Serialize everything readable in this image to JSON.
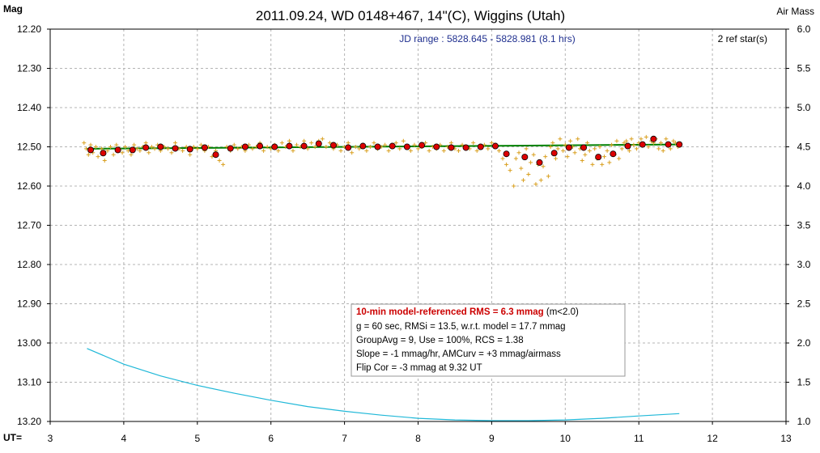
{
  "chart_data": {
    "type": "scatter",
    "title": "2011.09.24, WD 0148+467, 14\"(C), Wiggins (Utah)",
    "ylabel_left": "Mag",
    "ylabel_right": "Air Mass",
    "xlabel": "UT=",
    "jd_range": "JD range : 5828.645 - 5828.981 (8.1 hrs)",
    "ref_stars": "2 ref star(s)",
    "xlim": [
      3,
      13
    ],
    "x_ticks": [
      "3",
      "4",
      "5",
      "6",
      "7",
      "8",
      "9",
      "10",
      "11",
      "12",
      "13"
    ],
    "ylim_left": [
      12.2,
      13.2
    ],
    "y_ticks_left": [
      "12.20",
      "12.30",
      "12.40",
      "12.50",
      "12.60",
      "12.70",
      "12.80",
      "12.90",
      "13.00",
      "13.10",
      "13.20"
    ],
    "ylim_right": [
      6.0,
      1.0
    ],
    "y_ticks_right": [
      "6.0",
      "5.5",
      "5.0",
      "4.5",
      "4.0",
      "3.5",
      "3.0",
      "2.5",
      "2.0",
      "1.5",
      "1.0"
    ],
    "grid": true,
    "colors": {
      "individual": "#d9a020",
      "group": "#dd0000",
      "model": "#008000",
      "airmass": "#20b8d8"
    },
    "group_points": [
      [
        3.55,
        12.508
      ],
      [
        3.72,
        12.516
      ],
      [
        3.92,
        12.508
      ],
      [
        4.12,
        12.508
      ],
      [
        4.3,
        12.502
      ],
      [
        4.5,
        12.5
      ],
      [
        4.7,
        12.504
      ],
      [
        4.9,
        12.506
      ],
      [
        5.1,
        12.502
      ],
      [
        5.25,
        12.52
      ],
      [
        5.45,
        12.504
      ],
      [
        5.65,
        12.5
      ],
      [
        5.85,
        12.498
      ],
      [
        6.05,
        12.5
      ],
      [
        6.25,
        12.498
      ],
      [
        6.45,
        12.498
      ],
      [
        6.65,
        12.492
      ],
      [
        6.85,
        12.496
      ],
      [
        7.05,
        12.502
      ],
      [
        7.25,
        12.498
      ],
      [
        7.45,
        12.5
      ],
      [
        7.65,
        12.498
      ],
      [
        7.85,
        12.5
      ],
      [
        8.05,
        12.496
      ],
      [
        8.25,
        12.5
      ],
      [
        8.45,
        12.502
      ],
      [
        8.65,
        12.502
      ],
      [
        8.85,
        12.5
      ],
      [
        9.05,
        12.498
      ],
      [
        9.2,
        12.518
      ],
      [
        9.45,
        12.526
      ],
      [
        9.65,
        12.54
      ],
      [
        9.85,
        12.516
      ],
      [
        10.05,
        12.502
      ],
      [
        10.25,
        12.502
      ],
      [
        10.45,
        12.526
      ],
      [
        10.65,
        12.518
      ],
      [
        10.85,
        12.498
      ],
      [
        11.05,
        12.494
      ],
      [
        11.2,
        12.48
      ],
      [
        11.4,
        12.494
      ],
      [
        11.55,
        12.494
      ]
    ],
    "individual_points": [
      [
        3.46,
        12.49
      ],
      [
        3.49,
        12.505
      ],
      [
        3.52,
        12.52
      ],
      [
        3.55,
        12.495
      ],
      [
        3.58,
        12.515
      ],
      [
        3.62,
        12.5
      ],
      [
        3.65,
        12.525
      ],
      [
        3.7,
        12.505
      ],
      [
        3.74,
        12.535
      ],
      [
        3.78,
        12.51
      ],
      [
        3.82,
        12.5
      ],
      [
        3.86,
        12.52
      ],
      [
        3.9,
        12.495
      ],
      [
        3.94,
        12.505
      ],
      [
        3.98,
        12.515
      ],
      [
        4.02,
        12.5
      ],
      [
        4.06,
        12.51
      ],
      [
        4.1,
        12.52
      ],
      [
        4.14,
        12.495
      ],
      [
        4.18,
        12.505
      ],
      [
        4.22,
        12.51
      ],
      [
        4.26,
        12.5
      ],
      [
        4.3,
        12.49
      ],
      [
        4.34,
        12.515
      ],
      [
        4.38,
        12.5
      ],
      [
        4.42,
        12.505
      ],
      [
        4.46,
        12.495
      ],
      [
        4.5,
        12.51
      ],
      [
        4.55,
        12.5
      ],
      [
        4.6,
        12.505
      ],
      [
        4.65,
        12.515
      ],
      [
        4.7,
        12.49
      ],
      [
        4.75,
        12.505
      ],
      [
        4.8,
        12.51
      ],
      [
        4.85,
        12.5
      ],
      [
        4.9,
        12.52
      ],
      [
        4.95,
        12.5
      ],
      [
        5.0,
        12.505
      ],
      [
        5.05,
        12.495
      ],
      [
        5.1,
        12.51
      ],
      [
        5.15,
        12.5
      ],
      [
        5.2,
        12.525
      ],
      [
        5.25,
        12.51
      ],
      [
        5.3,
        12.535
      ],
      [
        5.35,
        12.545
      ],
      [
        5.4,
        12.5
      ],
      [
        5.45,
        12.51
      ],
      [
        5.5,
        12.495
      ],
      [
        5.55,
        12.505
      ],
      [
        5.6,
        12.5
      ],
      [
        5.65,
        12.51
      ],
      [
        5.7,
        12.495
      ],
      [
        5.75,
        12.505
      ],
      [
        5.8,
        12.5
      ],
      [
        5.85,
        12.49
      ],
      [
        5.9,
        12.51
      ],
      [
        5.95,
        12.5
      ],
      [
        6.0,
        12.505
      ],
      [
        6.05,
        12.495
      ],
      [
        6.1,
        12.51
      ],
      [
        6.15,
        12.49
      ],
      [
        6.2,
        12.5
      ],
      [
        6.25,
        12.485
      ],
      [
        6.3,
        12.51
      ],
      [
        6.35,
        12.495
      ],
      [
        6.4,
        12.5
      ],
      [
        6.45,
        12.485
      ],
      [
        6.5,
        12.505
      ],
      [
        6.55,
        12.49
      ],
      [
        6.6,
        12.5
      ],
      [
        6.65,
        12.485
      ],
      [
        6.7,
        12.48
      ],
      [
        6.75,
        12.5
      ],
      [
        6.8,
        12.49
      ],
      [
        6.85,
        12.505
      ],
      [
        6.9,
        12.495
      ],
      [
        6.95,
        12.51
      ],
      [
        7.0,
        12.5
      ],
      [
        7.05,
        12.49
      ],
      [
        7.1,
        12.515
      ],
      [
        7.15,
        12.5
      ],
      [
        7.2,
        12.505
      ],
      [
        7.25,
        12.495
      ],
      [
        7.3,
        12.51
      ],
      [
        7.35,
        12.5
      ],
      [
        7.4,
        12.49
      ],
      [
        7.45,
        12.505
      ],
      [
        7.5,
        12.5
      ],
      [
        7.55,
        12.495
      ],
      [
        7.6,
        12.51
      ],
      [
        7.65,
        12.5
      ],
      [
        7.7,
        12.49
      ],
      [
        7.75,
        12.505
      ],
      [
        7.8,
        12.485
      ],
      [
        7.85,
        12.5
      ],
      [
        7.9,
        12.51
      ],
      [
        7.95,
        12.495
      ],
      [
        8.0,
        12.505
      ],
      [
        8.05,
        12.5
      ],
      [
        8.1,
        12.49
      ],
      [
        8.15,
        12.51
      ],
      [
        8.2,
        12.5
      ],
      [
        8.25,
        12.505
      ],
      [
        8.3,
        12.495
      ],
      [
        8.35,
        12.51
      ],
      [
        8.4,
        12.5
      ],
      [
        8.45,
        12.49
      ],
      [
        8.5,
        12.505
      ],
      [
        8.55,
        12.51
      ],
      [
        8.6,
        12.495
      ],
      [
        8.65,
        12.5
      ],
      [
        8.7,
        12.505
      ],
      [
        8.75,
        12.49
      ],
      [
        8.8,
        12.51
      ],
      [
        8.85,
        12.5
      ],
      [
        8.9,
        12.495
      ],
      [
        8.95,
        12.505
      ],
      [
        9.0,
        12.49
      ],
      [
        9.05,
        12.5
      ],
      [
        9.1,
        12.51
      ],
      [
        9.15,
        12.53
      ],
      [
        9.2,
        12.545
      ],
      [
        9.25,
        12.56
      ],
      [
        9.3,
        12.6
      ],
      [
        9.33,
        12.53
      ],
      [
        9.37,
        12.515
      ],
      [
        9.4,
        12.555
      ],
      [
        9.43,
        12.585
      ],
      [
        9.47,
        12.505
      ],
      [
        9.5,
        12.57
      ],
      [
        9.53,
        12.54
      ],
      [
        9.57,
        12.52
      ],
      [
        9.6,
        12.595
      ],
      [
        9.63,
        12.545
      ],
      [
        9.67,
        12.585
      ],
      [
        9.7,
        12.55
      ],
      [
        9.73,
        12.525
      ],
      [
        9.77,
        12.575
      ],
      [
        9.8,
        12.5
      ],
      [
        9.83,
        12.49
      ],
      [
        9.87,
        12.53
      ],
      [
        9.9,
        12.505
      ],
      [
        9.93,
        12.48
      ],
      [
        9.97,
        12.51
      ],
      [
        10.0,
        12.495
      ],
      [
        10.03,
        12.525
      ],
      [
        10.07,
        12.485
      ],
      [
        10.1,
        12.5
      ],
      [
        10.13,
        12.515
      ],
      [
        10.17,
        12.48
      ],
      [
        10.2,
        12.505
      ],
      [
        10.23,
        12.535
      ],
      [
        10.27,
        12.52
      ],
      [
        10.3,
        12.49
      ],
      [
        10.33,
        12.51
      ],
      [
        10.37,
        12.545
      ],
      [
        10.4,
        12.505
      ],
      [
        10.43,
        12.53
      ],
      [
        10.47,
        12.5
      ],
      [
        10.5,
        12.545
      ],
      [
        10.53,
        12.525
      ],
      [
        10.57,
        12.51
      ],
      [
        10.6,
        12.54
      ],
      [
        10.63,
        12.495
      ],
      [
        10.67,
        12.52
      ],
      [
        10.7,
        12.485
      ],
      [
        10.73,
        12.53
      ],
      [
        10.77,
        12.505
      ],
      [
        10.8,
        12.49
      ],
      [
        10.83,
        12.485
      ],
      [
        10.87,
        12.51
      ],
      [
        10.9,
        12.48
      ],
      [
        10.93,
        12.495
      ],
      [
        10.97,
        12.505
      ],
      [
        11.0,
        12.49
      ],
      [
        11.03,
        12.48
      ],
      [
        11.07,
        12.495
      ],
      [
        11.1,
        12.475
      ],
      [
        11.13,
        12.5
      ],
      [
        11.17,
        12.485
      ],
      [
        11.2,
        12.49
      ],
      [
        11.23,
        12.48
      ],
      [
        11.27,
        12.505
      ],
      [
        11.3,
        12.49
      ],
      [
        11.33,
        12.51
      ],
      [
        11.37,
        12.48
      ],
      [
        11.4,
        12.495
      ],
      [
        11.43,
        12.505
      ],
      [
        11.47,
        12.485
      ],
      [
        11.5,
        12.49
      ],
      [
        11.53,
        12.5
      ]
    ],
    "model_line": [
      [
        3.5,
        12.505
      ],
      [
        11.55,
        12.494
      ]
    ],
    "airmass_curve": [
      [
        3.5,
        1.93
      ],
      [
        4.0,
        1.73
      ],
      [
        4.5,
        1.58
      ],
      [
        5.0,
        1.46
      ],
      [
        5.5,
        1.36
      ],
      [
        6.0,
        1.27
      ],
      [
        6.5,
        1.19
      ],
      [
        7.0,
        1.13
      ],
      [
        7.5,
        1.08
      ],
      [
        8.0,
        1.04
      ],
      [
        8.5,
        1.02
      ],
      [
        9.0,
        1.01
      ],
      [
        9.5,
        1.01
      ],
      [
        10.0,
        1.02
      ],
      [
        10.5,
        1.04
      ],
      [
        11.0,
        1.07
      ],
      [
        11.55,
        1.1
      ]
    ],
    "info_box": {
      "line1": "10-min model-referenced RMS = 6.3 mmag",
      "line1_suffix": " (m<2.0)",
      "line2": "g = 60 sec, RMSi = 13.5, w.r.t. model = 17.7 mmag",
      "line3": "GroupAvg = 9, Use = 100%, RCS = 1.38",
      "line4": "Slope = -1 mmag/hr, AMCurv = +3 mmag/airmass",
      "line5": "Flip Cor = -3 mmag at 9.32 UT"
    }
  }
}
